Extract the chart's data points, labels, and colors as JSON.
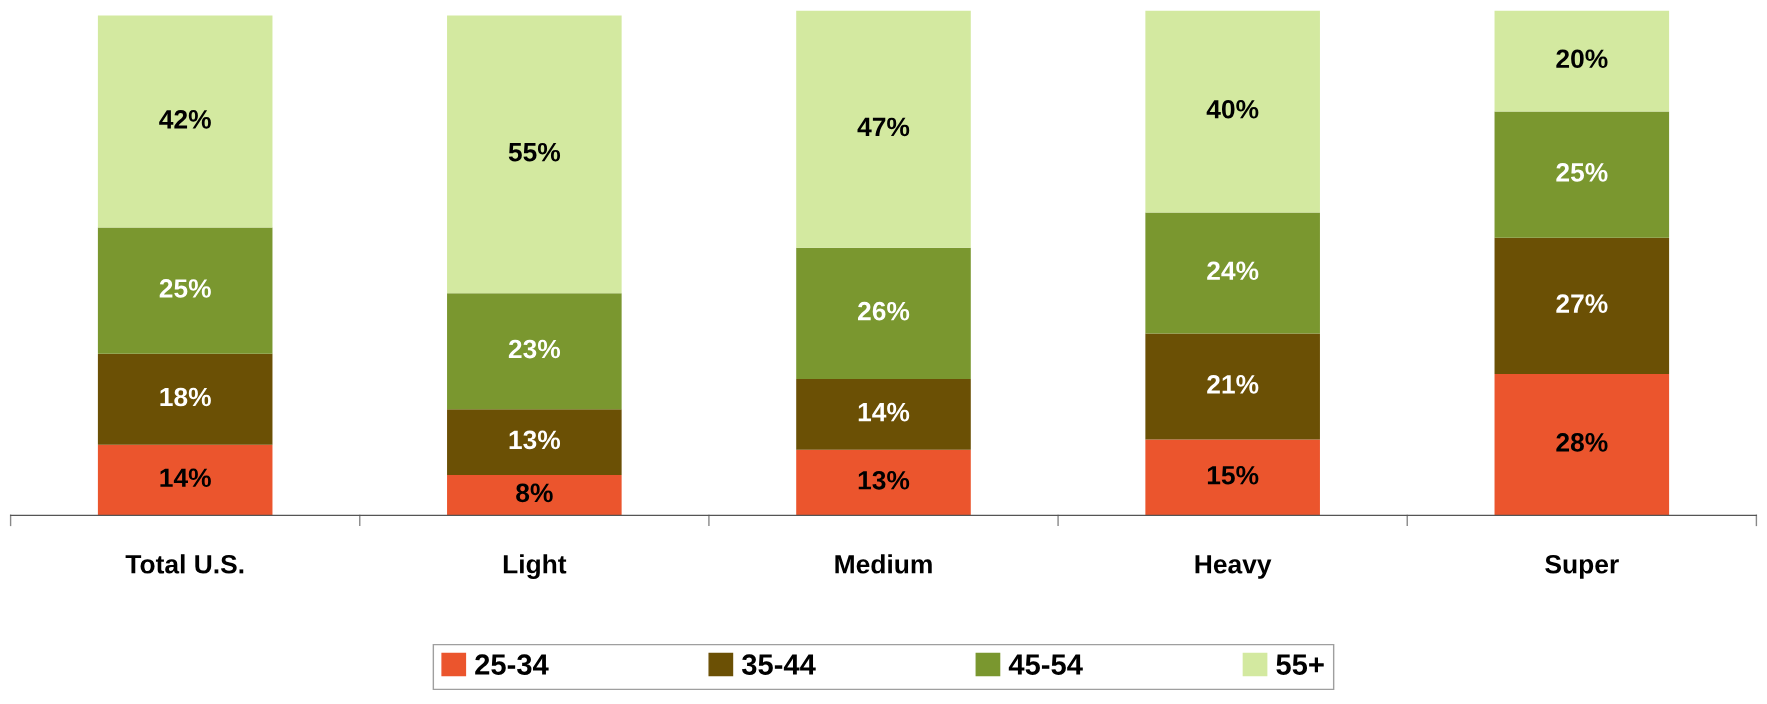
{
  "chart_data": {
    "type": "bar",
    "stacked": true,
    "legend": "bottom",
    "grid": false,
    "categories": [
      "Total U.S.",
      "Light",
      "Medium",
      "Heavy",
      "Super"
    ],
    "series": [
      {
        "name": "25-34",
        "color": "#eb552d",
        "values": [
          14,
          8,
          13,
          15,
          28
        ],
        "value_labels": [
          "14%",
          "8%",
          "13%",
          "15%",
          "28%"
        ]
      },
      {
        "name": "35-44",
        "color": "#6b5005",
        "values": [
          18,
          13,
          14,
          21,
          27
        ],
        "value_labels": [
          "18%",
          "13%",
          "14%",
          "21%",
          "27%"
        ]
      },
      {
        "name": "45-54",
        "color": "#7a972f",
        "values": [
          25,
          23,
          26,
          24,
          25
        ],
        "value_labels": [
          "25%",
          "23%",
          "26%",
          "24%",
          "25%"
        ]
      },
      {
        "name": "55+",
        "color": "#d3e9a0",
        "values": [
          42,
          55,
          47,
          40,
          20
        ],
        "value_labels": [
          "42%",
          "55%",
          "47%",
          "40%",
          "20%"
        ]
      }
    ]
  }
}
